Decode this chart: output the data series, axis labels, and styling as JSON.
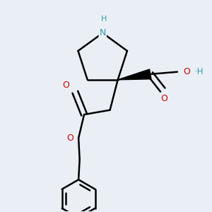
{
  "bg_color": "#eaeff5",
  "atom_colors": {
    "N": "#3399aa",
    "O": "#cc0000",
    "C": "#000000",
    "H": "#3399aa"
  },
  "bond_color": "#000000",
  "bond_width": 1.8
}
